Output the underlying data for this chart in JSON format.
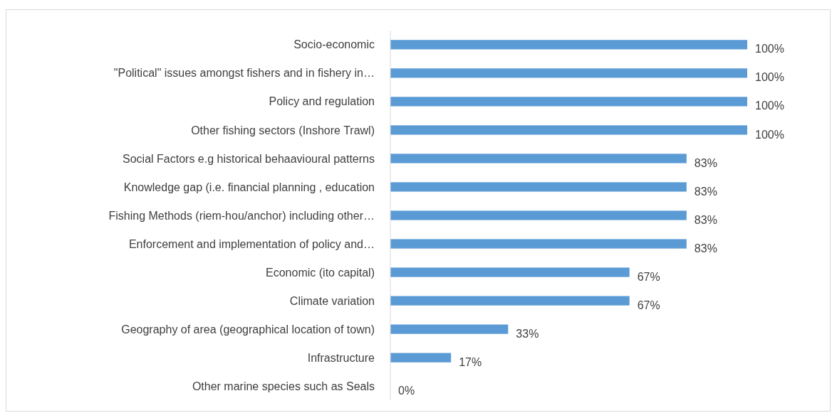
{
  "chart_data": {
    "type": "bar",
    "orientation": "horizontal",
    "categories": [
      "Socio-economic",
      "\"Political\" issues amongst fishers and in fishery in…",
      "Policy and regulation",
      "Other fishing sectors (Inshore Trawl)",
      "Social Factors e.g historical behaavioural patterns",
      "Knowledge gap (i.e. financial planning , education",
      "Fishing Methods (riem-hou/anchor) including other…",
      "Enforcement and implementation of policy and…",
      "Economic (ito capital)",
      "Climate variation",
      "Geography of area (geographical location of town)",
      "Infrastructure",
      "Other marine species such as Seals"
    ],
    "values": [
      100,
      100,
      100,
      100,
      83,
      83,
      83,
      83,
      67,
      67,
      33,
      17,
      0
    ],
    "value_labels": [
      "100%",
      "100%",
      "100%",
      "100%",
      "83%",
      "83%",
      "83%",
      "83%",
      "67%",
      "67%",
      "33%",
      "17%",
      "0%"
    ],
    "color": "#5b9bd5"
  }
}
